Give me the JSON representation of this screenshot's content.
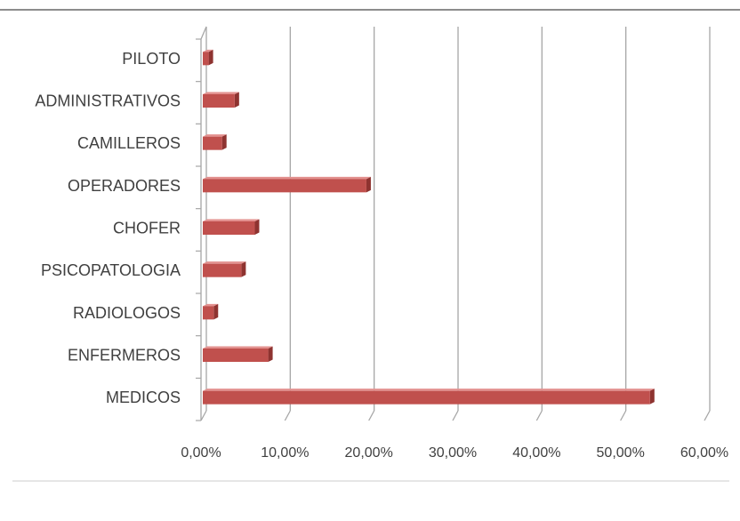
{
  "chart_data": {
    "type": "bar",
    "orientation": "horizontal",
    "categories": [
      "PILOTO",
      "ADMINISTRATIVOS",
      "CAMILLEROS",
      "OPERADORES",
      "CHOFER",
      "PSICOPATOLOGIA",
      "RADIOLOGOS",
      "ENFERMEROS",
      "MEDICOS"
    ],
    "values": [
      0.7,
      3.8,
      2.3,
      19.5,
      6.2,
      4.6,
      1.3,
      7.8,
      53.3
    ],
    "x_ticks": [
      "0,00%",
      "10,00%",
      "20,00%",
      "30,00%",
      "40,00%",
      "50,00%",
      "60,00%"
    ],
    "xlim": [
      0,
      60
    ],
    "grid": "vertical",
    "legend": "none",
    "bar_color": "#c0504d",
    "title": "",
    "xlabel": "",
    "ylabel": ""
  }
}
